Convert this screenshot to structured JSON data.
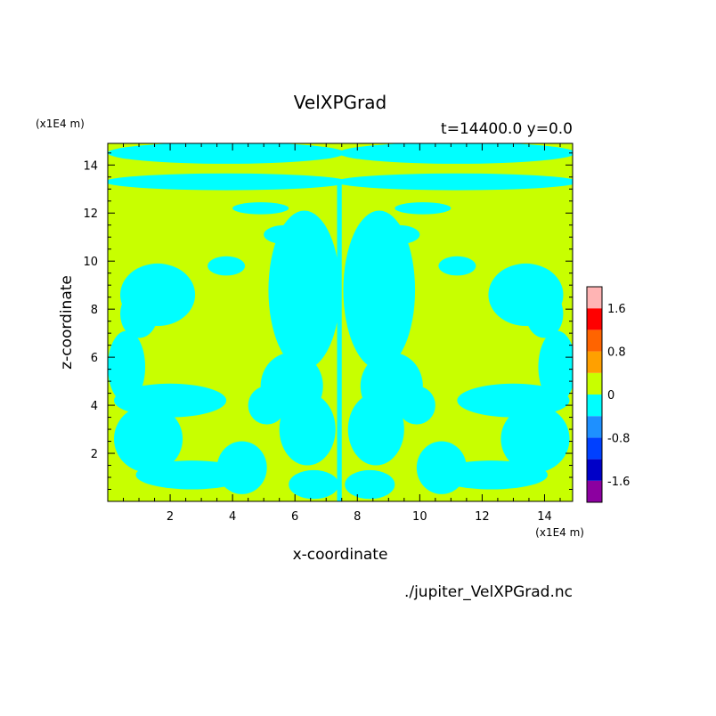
{
  "chart_data": {
    "type": "heatmap",
    "title": "VelXPGrad",
    "subtitle": "t=14400.0 y=0.0",
    "xlabel": "x-coordinate",
    "ylabel": "z-coordinate",
    "x_unit": "(x1E4 m)",
    "y_unit": "(x1E4 m)",
    "xlim": [
      0,
      14.9
    ],
    "ylim": [
      0,
      14.9
    ],
    "x_ticks": [
      2,
      4,
      6,
      8,
      10,
      12,
      14
    ],
    "y_ticks": [
      2,
      4,
      6,
      8,
      10,
      12,
      14
    ],
    "source_file": "./jupiter_VelXPGrad.nc",
    "colorbar": {
      "levels": [
        -2.0,
        -1.6,
        -1.2,
        -0.8,
        -0.4,
        0,
        0.4,
        0.8,
        1.2,
        1.6,
        2.0
      ],
      "labels": [
        {
          "value": 1.6,
          "text": "1.6"
        },
        {
          "value": 0.8,
          "text": "0.8"
        },
        {
          "value": 0,
          "text": "0"
        },
        {
          "value": -0.8,
          "text": "-0.8"
        },
        {
          "value": -1.6,
          "text": "-1.6"
        }
      ],
      "colors": [
        "#8c00a0",
        "#0000c8",
        "#0040ff",
        "#1e90ff",
        "#00ffff",
        "#c8ff00",
        "#ffa000",
        "#ff6400",
        "#ff0000",
        "#ffb4b4"
      ]
    },
    "field_colors": {
      "positive": "#c8ff00",
      "negative": "#00ffff"
    }
  }
}
